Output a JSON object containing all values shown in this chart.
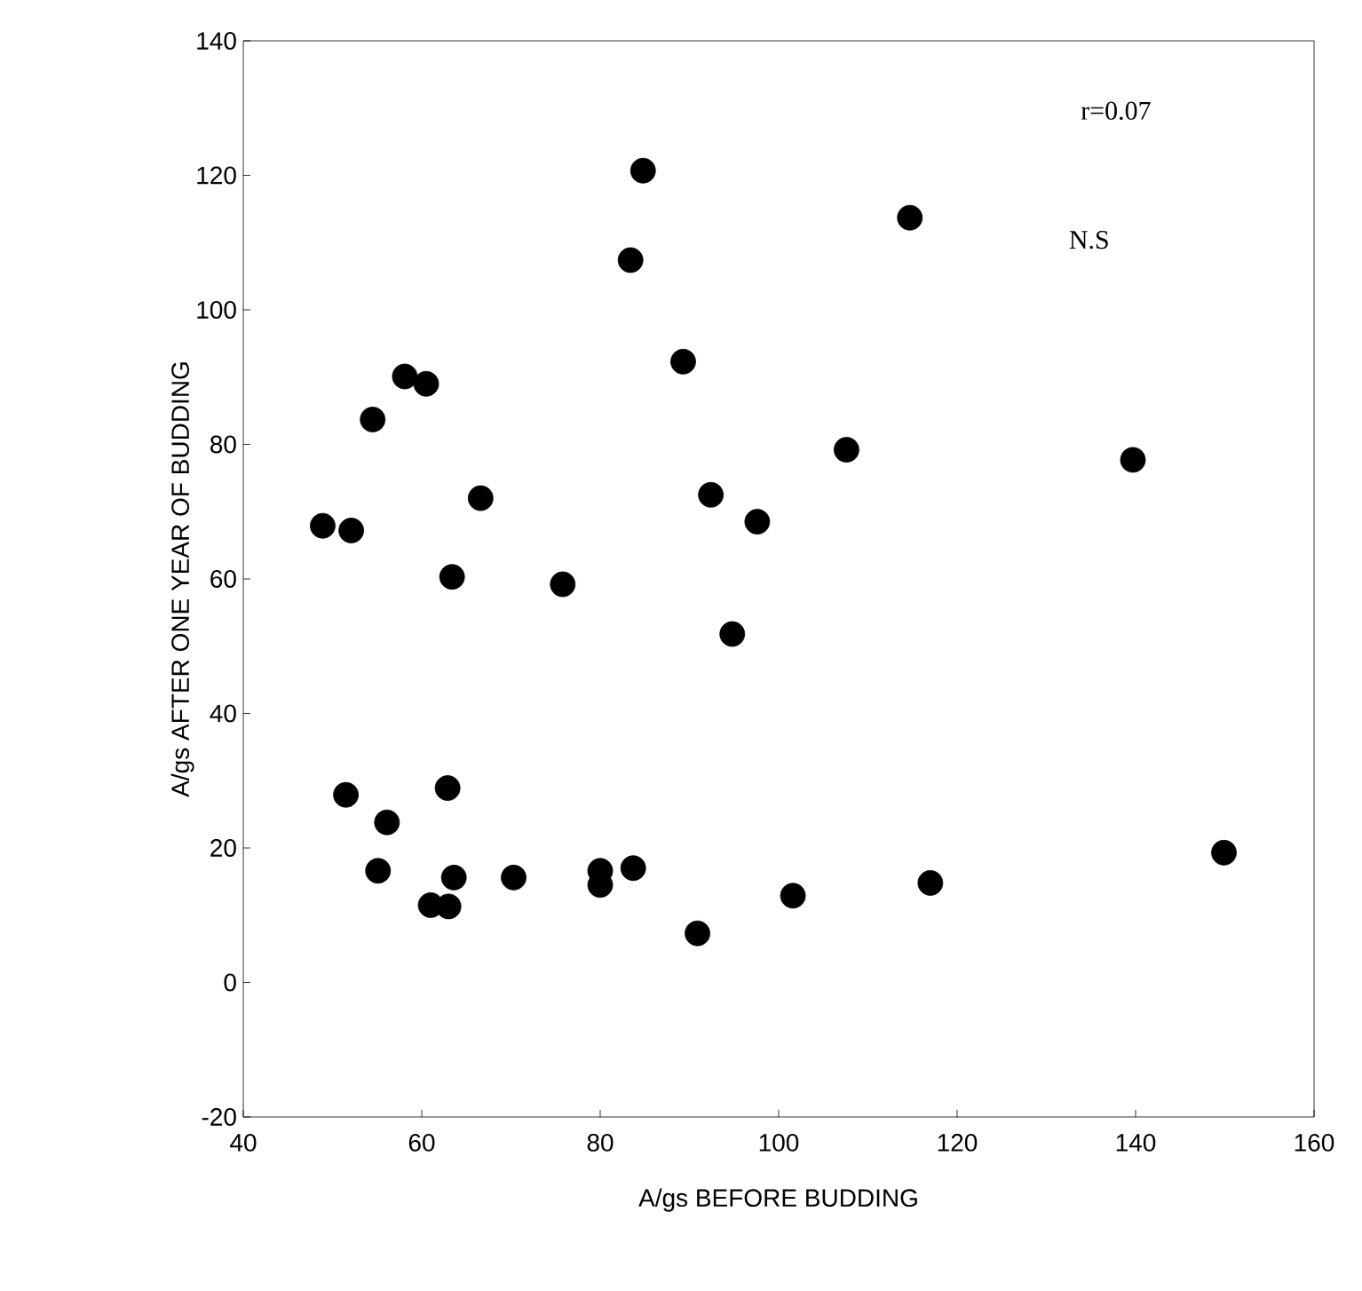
{
  "chart_data": {
    "type": "scatter",
    "xlabel": "A/gs BEFORE BUDDING",
    "ylabel": "A/gs AFTER ONE YEAR OF BUDDING",
    "xlim": [
      40,
      160
    ],
    "xticks": [
      40,
      60,
      80,
      100,
      120,
      140,
      160
    ],
    "ylim": [
      -20,
      140
    ],
    "yticks": [
      -20,
      0,
      20,
      40,
      60,
      80,
      100,
      120,
      140
    ],
    "grid": false,
    "annotations": [
      "r=0.07",
      "N.S"
    ],
    "series": [
      {
        "color": "#000000",
        "x": [
          84.8,
          83.4,
          89.3,
          58.1,
          60.5,
          54.5,
          66.6,
          92.4,
          97.6,
          48.9,
          52.1,
          63.4,
          75.8,
          94.8,
          114.7,
          107.6,
          139.7,
          51.5,
          62.9,
          56.1,
          55.1,
          63.6,
          61.0,
          63.0,
          70.3,
          80.0,
          80.0,
          83.7,
          90.9,
          101.6,
          117.0,
          149.9
        ],
        "values": [
          120.7,
          107.4,
          92.3,
          90.1,
          89.0,
          83.7,
          72.0,
          72.5,
          68.5,
          67.9,
          67.2,
          60.3,
          59.2,
          51.8,
          113.7,
          79.2,
          77.7,
          27.9,
          28.9,
          23.8,
          16.6,
          15.6,
          11.5,
          11.3,
          15.6,
          16.6,
          14.5,
          17.0,
          7.3,
          12.9,
          14.8,
          19.3
        ]
      }
    ]
  }
}
